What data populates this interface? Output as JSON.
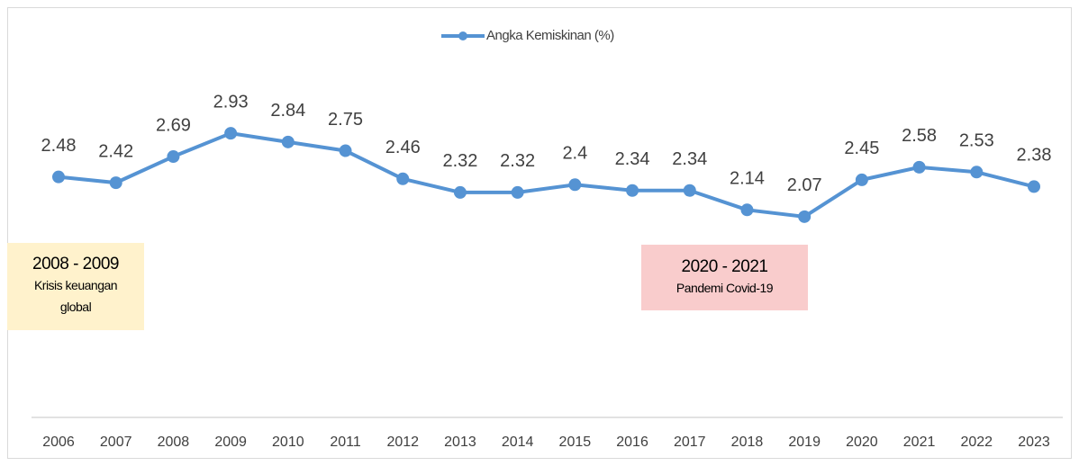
{
  "chart_data": {
    "type": "line",
    "categories": [
      "2006",
      "2007",
      "2008",
      "2009",
      "2010",
      "2011",
      "2012",
      "2013",
      "2014",
      "2015",
      "2016",
      "2017",
      "2018",
      "2019",
      "2020",
      "2021",
      "2022",
      "2023"
    ],
    "series": [
      {
        "name": "Angka Kemiskinan (%)",
        "color": "#5593d3",
        "values": [
          2.48,
          2.42,
          2.69,
          2.93,
          2.84,
          2.75,
          2.46,
          2.32,
          2.32,
          2.4,
          2.34,
          2.34,
          2.14,
          2.07,
          2.45,
          2.58,
          2.53,
          2.38
        ]
      }
    ],
    "legend": "top",
    "annotations": [
      {
        "title": "2008 - 2009",
        "text": "Krisis keuangan global",
        "color": "#fff2cc"
      },
      {
        "title": "2020 - 2021",
        "text": "Pandemi Covid-19",
        "color": "#f9cccc"
      }
    ]
  }
}
